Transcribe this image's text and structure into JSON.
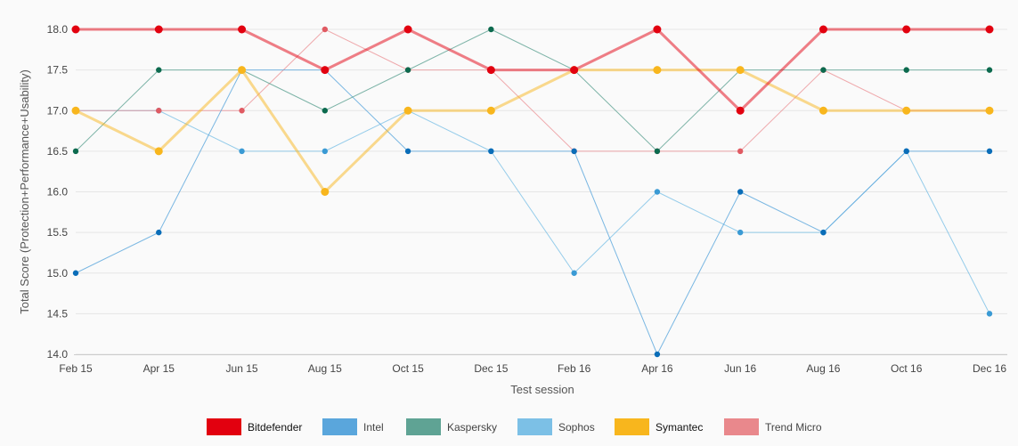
{
  "chart_data": {
    "type": "line",
    "title": "",
    "xlabel": "Test session",
    "ylabel": "Total Score (Protection+Performance+Usability)",
    "categories": [
      "Feb 15",
      "Apr 15",
      "Jun 15",
      "Aug 15",
      "Oct 15",
      "Dec 15",
      "Feb 16",
      "Apr 16",
      "Jun 16",
      "Aug 16",
      "Oct 16",
      "Dec 16"
    ],
    "ylim": [
      14.0,
      18.0
    ],
    "yticks": [
      "14.0",
      "14.5",
      "15.0",
      "15.5",
      "16.0",
      "16.5",
      "17.0",
      "17.5",
      "18.0"
    ],
    "grid": "horizontal",
    "legend_position": "bottom-center",
    "series": [
      {
        "name": "Bitdefender",
        "color": "#e2000f",
        "values": [
          18,
          18,
          18,
          17.5,
          18,
          17.5,
          17.5,
          18,
          17,
          18,
          18,
          18
        ]
      },
      {
        "name": "Intel",
        "color": "#5aa6dc",
        "values": [
          15,
          15.5,
          17.5,
          17.5,
          16.5,
          16.5,
          16.5,
          14,
          16,
          15.5,
          16.5,
          16.5
        ]
      },
      {
        "name": "Kaspersky",
        "color": "#5fa394",
        "values": [
          16.5,
          17.5,
          17.5,
          17,
          17.5,
          18,
          17.5,
          16.5,
          17.5,
          17.5,
          17.5,
          17.5
        ]
      },
      {
        "name": "Sophos",
        "color": "#7cc0e6",
        "values": [
          17,
          17,
          16.5,
          16.5,
          17,
          16.5,
          15,
          16,
          15.5,
          15.5,
          16.5,
          14.5
        ]
      },
      {
        "name": "Symantec",
        "color": "#f8b61d",
        "values": [
          17,
          16.5,
          17.5,
          16,
          17,
          17,
          17.5,
          17.5,
          17.5,
          17,
          17,
          17
        ]
      },
      {
        "name": "Trend Micro",
        "color": "#e9888c",
        "values": [
          17,
          17,
          17,
          18,
          17.5,
          17.5,
          16.5,
          16.5,
          16.5,
          17.5,
          17,
          17
        ]
      }
    ]
  }
}
